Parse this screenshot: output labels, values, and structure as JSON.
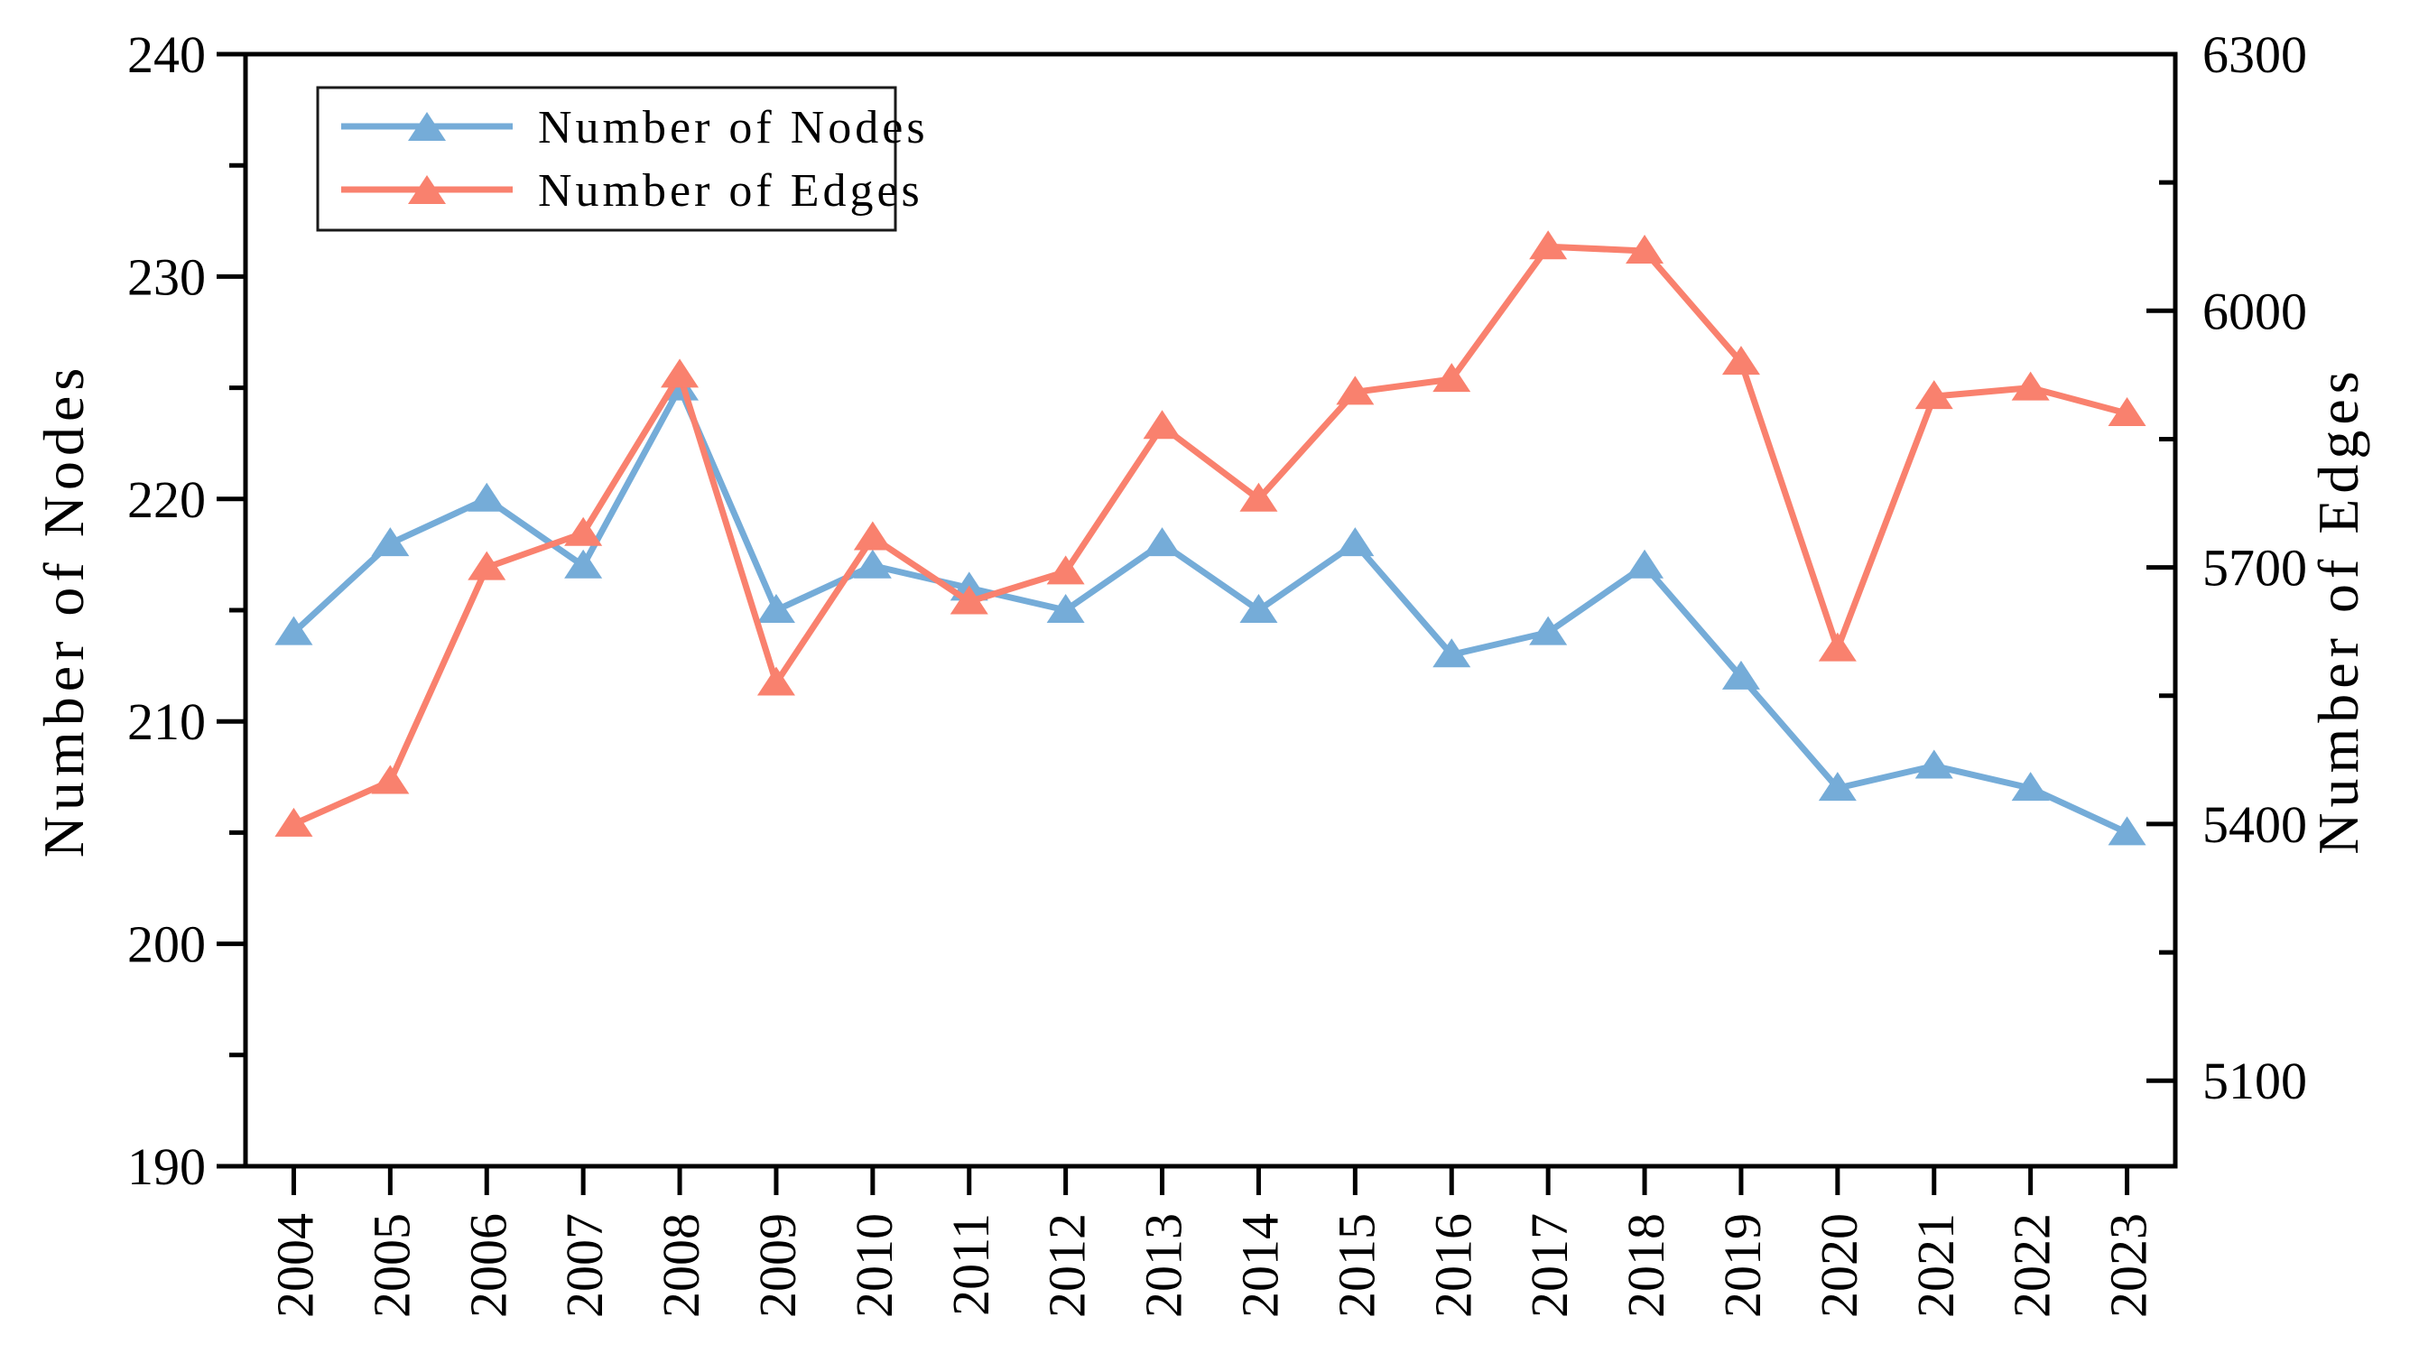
{
  "figure": {
    "background": "#ffffff",
    "frame_color": "#000000"
  },
  "chart_data": {
    "type": "line",
    "title": "",
    "xlabel": "",
    "categories": [
      "2004",
      "2005",
      "2006",
      "2007",
      "2008",
      "2009",
      "2010",
      "2011",
      "2012",
      "2013",
      "2014",
      "2015",
      "2016",
      "2017",
      "2018",
      "2019",
      "2020",
      "2021",
      "2022",
      "2023"
    ],
    "series": [
      {
        "name": "Number of Nodes",
        "axis": "left",
        "color": "#75ACD8",
        "marker": "triangle-up",
        "values": [
          214,
          218,
          220,
          217,
          225,
          215,
          217,
          216,
          215,
          218,
          215,
          218,
          213,
          214,
          217,
          212,
          207,
          208,
          207,
          205
        ]
      },
      {
        "name": "Number of Edges",
        "axis": "right",
        "color": "#F9816E",
        "marker": "triangle-up",
        "values": [
          5400,
          5450,
          5700,
          5740,
          5925,
          5565,
          5735,
          5660,
          5695,
          5865,
          5780,
          5905,
          5920,
          6075,
          6070,
          5940,
          5605,
          5900,
          5910,
          5880
        ]
      }
    ],
    "left_axis": {
      "label": "Number of Nodes",
      "min": 190,
      "max": 240,
      "major_tick_step": 10,
      "minor_tick_step": 5,
      "tick_labels": [
        "190",
        "200",
        "210",
        "220",
        "230",
        "240"
      ]
    },
    "right_axis": {
      "label": "Number of Edges",
      "min": 5000,
      "max": 6300,
      "major_tick_step": 300,
      "minor_tick_step": 150,
      "first_major_tick": 5100,
      "tick_labels": [
        "5100",
        "5400",
        "5700",
        "6000",
        "6300"
      ]
    },
    "x_axis": {
      "tick_label_rotation_deg": -90
    },
    "legend": {
      "position": "top-left",
      "entries": [
        "Number of Nodes",
        "Number of Edges"
      ]
    },
    "grid": false
  }
}
